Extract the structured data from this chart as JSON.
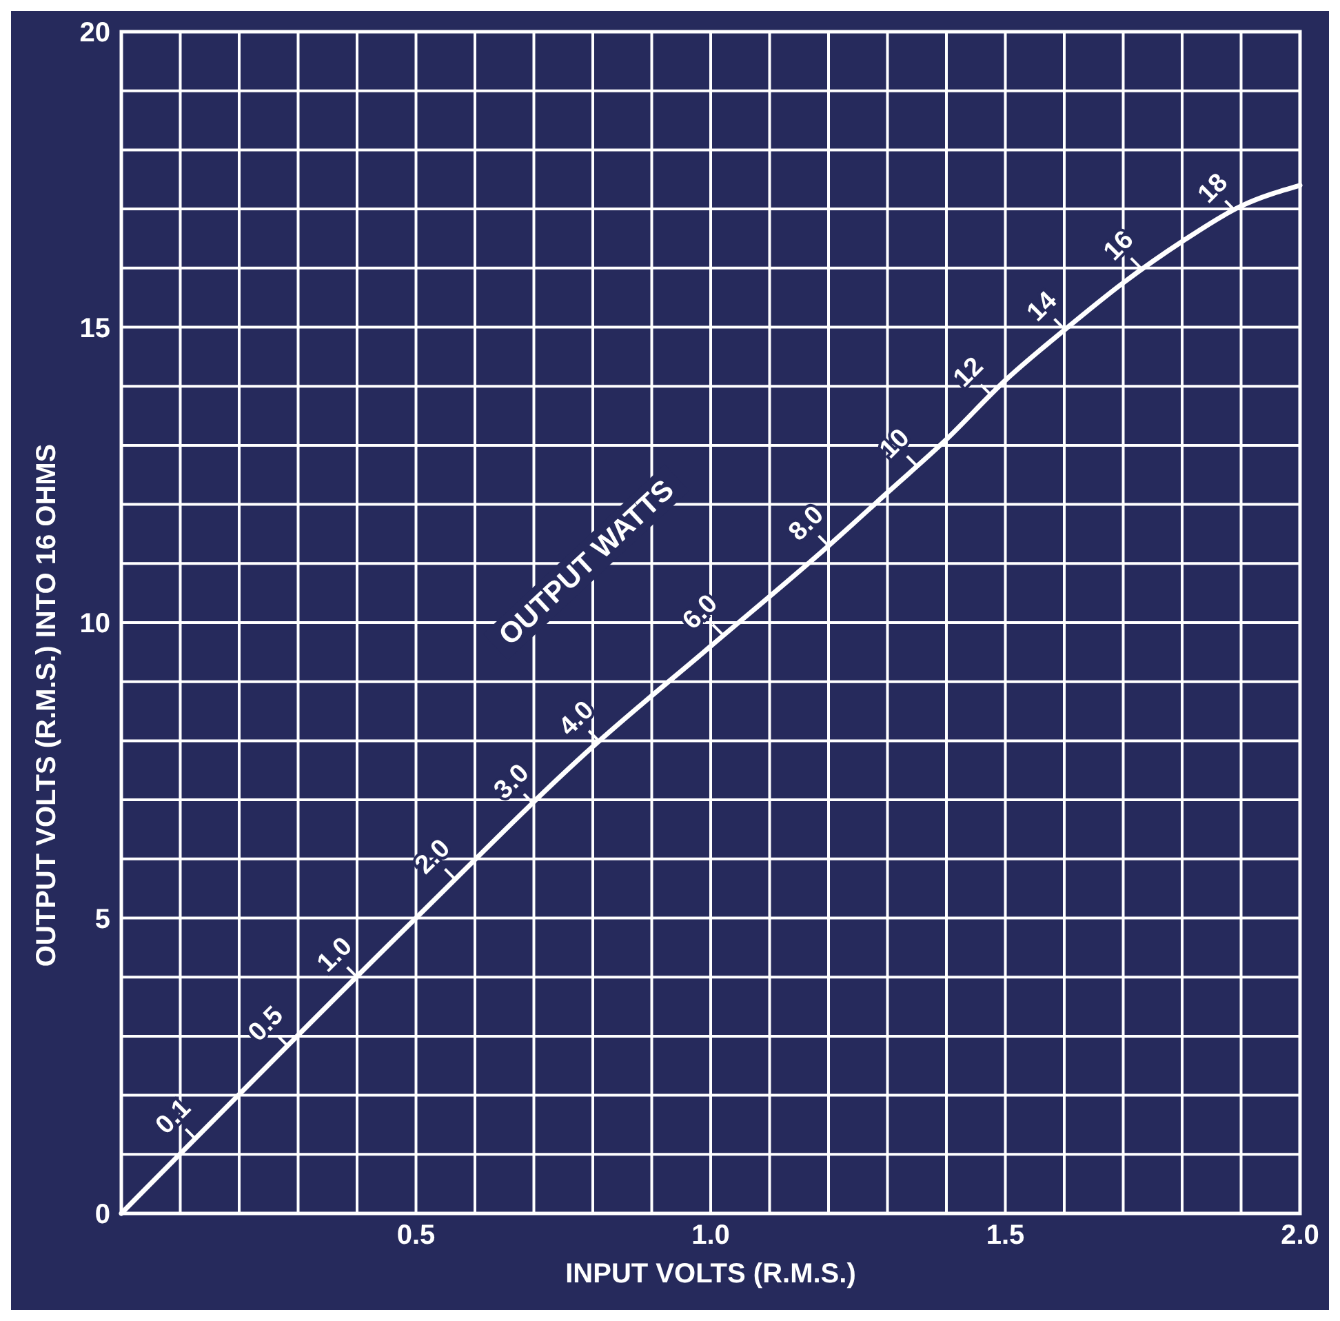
{
  "chart_data": {
    "type": "line",
    "xlabel": "INPUT VOLTS (R.M.S.)",
    "ylabel": "OUTPUT VOLTS (R.M.S.) INTO 16 OHMS",
    "x": [
      0,
      0.5,
      0.8,
      1.0,
      1.2,
      1.3,
      1.4,
      1.5,
      1.6,
      1.7,
      1.8,
      1.9,
      2.0
    ],
    "series": [
      {
        "color": "#ffffff",
        "values": [
          0,
          5,
          7.9,
          9.6,
          11.3,
          12.2,
          13.1,
          14.1,
          14.95,
          15.75,
          16.45,
          17.05,
          17.4
        ]
      }
    ],
    "xlim": [
      0,
      2
    ],
    "ylim": [
      0,
      20
    ],
    "xticks": [
      {
        "value": 0,
        "label": null
      },
      {
        "value": 0.1,
        "label": null
      },
      {
        "value": 0.2,
        "label": null
      },
      {
        "value": 0.3,
        "label": null
      },
      {
        "value": 0.4,
        "label": null
      },
      {
        "value": 0.5,
        "label": "0.5"
      },
      {
        "value": 0.6,
        "label": null
      },
      {
        "value": 0.7,
        "label": null
      },
      {
        "value": 0.8,
        "label": null
      },
      {
        "value": 0.9,
        "label": null
      },
      {
        "value": 1.0,
        "label": "1.0"
      },
      {
        "value": 1.1,
        "label": null
      },
      {
        "value": 1.2,
        "label": null
      },
      {
        "value": 1.3,
        "label": null
      },
      {
        "value": 1.4,
        "label": null
      },
      {
        "value": 1.5,
        "label": "1.5"
      },
      {
        "value": 1.6,
        "label": null
      },
      {
        "value": 1.7,
        "label": null
      },
      {
        "value": 1.8,
        "label": null
      },
      {
        "value": 1.9,
        "label": null
      },
      {
        "value": 2.0,
        "label": "2.0"
      }
    ],
    "yticks": [
      0,
      {
        "value": 1,
        "label": null
      },
      {
        "value": 2,
        "label": null
      },
      {
        "value": 3,
        "label": null
      },
      {
        "value": 4,
        "label": null
      },
      5,
      {
        "value": 6,
        "label": null
      },
      {
        "value": 7,
        "label": null
      },
      {
        "value": 8,
        "label": null
      },
      {
        "value": 9,
        "label": null
      },
      10,
      {
        "value": 11,
        "label": null
      },
      {
        "value": 12,
        "label": null
      },
      {
        "value": 13,
        "label": null
      },
      {
        "value": 14,
        "label": null
      },
      15,
      {
        "value": 16,
        "label": null
      },
      {
        "value": 17,
        "label": null
      },
      {
        "value": 18,
        "label": null
      },
      {
        "value": 19,
        "label": null
      },
      20
    ],
    "grid": true,
    "marker": "none",
    "line_style": "solid",
    "annotations": [
      "OUTPUT WATTS",
      {
        "text": "0.1",
        "x": 0.126,
        "y": 1.26
      },
      {
        "text": "0.5",
        "x": 0.283,
        "y": 2.83
      },
      {
        "text": "1.0",
        "x": 0.4,
        "y": 4
      },
      {
        "text": "2.0",
        "x": 0.566,
        "y": 5.66
      },
      {
        "text": "3.0",
        "x": 0.7,
        "y": 6.93
      },
      {
        "text": "4.0",
        "x": 0.81,
        "y": 8
      },
      {
        "text": "6.0",
        "x": 1.02,
        "y": 9.8
      },
      {
        "text": "8.0",
        "x": 1.2,
        "y": 11.3
      },
      {
        "text": "10",
        "x": 1.35,
        "y": 12.65
      },
      {
        "text": "12",
        "x": 1.475,
        "y": 13.86
      },
      {
        "text": "14",
        "x": 1.6,
        "y": 14.97
      },
      {
        "text": "16",
        "x": 1.73,
        "y": 16
      },
      {
        "text": "18",
        "x": 1.89,
        "y": 16.97
      }
    ]
  }
}
